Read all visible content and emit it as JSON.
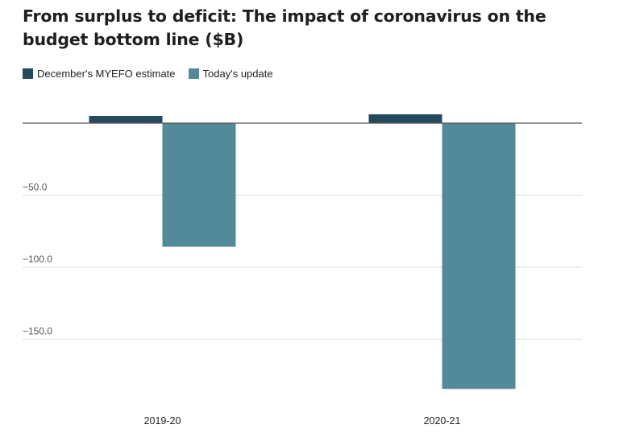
{
  "chart_data": {
    "type": "bar",
    "title": "From surplus to deficit: The impact of coronavirus on the budget bottom line ($B)",
    "categories": [
      "2019-20",
      "2020-21"
    ],
    "series": [
      {
        "name": "December's MYEFO estimate",
        "values": [
          5.0,
          6.1
        ],
        "color": "#244a5e"
      },
      {
        "name": "Today's update",
        "values": [
          -85.8,
          -184.5
        ],
        "color": "#538a9a"
      }
    ],
    "yticks": [
      {
        "value": -50,
        "label": "−50.0"
      },
      {
        "value": -100,
        "label": "−100.0"
      },
      {
        "value": -150,
        "label": "−150.0"
      }
    ],
    "ylim": [
      -195,
      10
    ],
    "grid": true,
    "legend_position": "top-left",
    "xlabel": "",
    "ylabel": ""
  }
}
